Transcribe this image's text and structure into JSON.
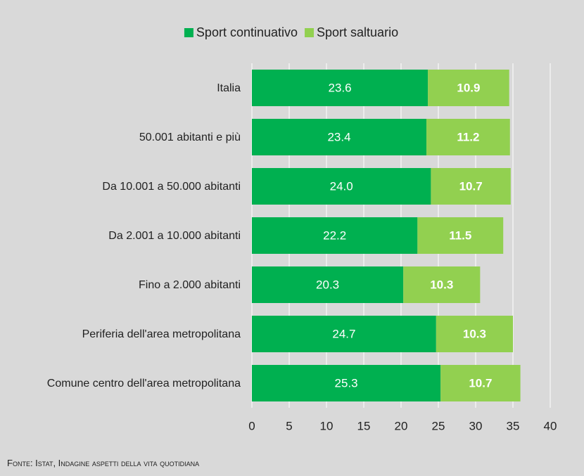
{
  "chart_data": {
    "type": "stacked_barh",
    "categories": [
      "Italia",
      "50.001 abitanti e più",
      "Da 10.001 a 50.000 abitanti",
      "Da 2.001 a 10.000 abitanti",
      "Fino a 2.000 abitanti",
      "Periferia dell'area metropolitana",
      "Comune centro dell'area metropolitana"
    ],
    "series": [
      {
        "name": "Sport continuativo",
        "color": "#00b050",
        "values": [
          23.6,
          23.4,
          24.0,
          22.2,
          20.3,
          24.7,
          25.3
        ],
        "value_labels": [
          "23.6",
          "23.4",
          "24.0",
          "22.2",
          "20.3",
          "24.7",
          "25.3"
        ]
      },
      {
        "name": "Sport saltuario",
        "color": "#92d050",
        "values": [
          10.9,
          11.2,
          10.7,
          11.5,
          10.3,
          10.3,
          10.7
        ],
        "value_labels": [
          "10.9",
          "11.2",
          "10.7",
          "11.5",
          "10.3",
          "10.3",
          "10.7"
        ]
      }
    ],
    "xlim": [
      0,
      40
    ],
    "xticks": [
      0,
      5,
      10,
      15,
      20,
      25,
      30,
      35,
      40
    ],
    "grid": true,
    "legend": "top",
    "source": "Fonte: Istat, Indagine aspetti della vita quotidiana"
  }
}
